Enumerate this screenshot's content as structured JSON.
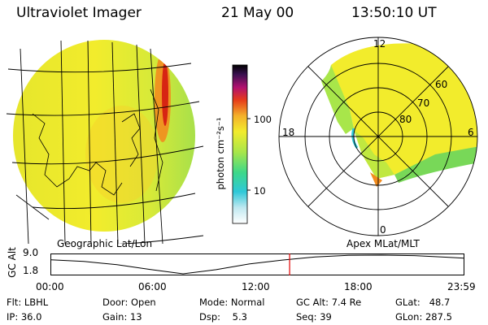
{
  "header": {
    "instrument": "Ultraviolet Imager",
    "date": "21 May 00",
    "time": "13:50:10 UT"
  },
  "colorbar": {
    "unit_label": "photon cm⁻²s⁻¹",
    "ticks": [
      "100",
      "10"
    ]
  },
  "polar_plot": {
    "mlt_labels": {
      "top": "12",
      "left": "18",
      "right": "6",
      "bottom": "0"
    },
    "lat_labels": [
      "60",
      "70",
      "80"
    ]
  },
  "orbit_panel": {
    "left_title": "Geographic Lat/Lon",
    "right_title": "Apex MLat/MLT",
    "y_label": "GC Alt",
    "y_ticks": [
      "9.0",
      "1.8"
    ],
    "x_ticks": [
      "00:00",
      "06:00",
      "12:00",
      "18:00",
      "23:59"
    ],
    "current_time_fraction": 0.578,
    "altitude_curve": {
      "t": [
        0,
        0.08,
        0.16,
        0.24,
        0.32,
        0.4,
        0.48,
        0.56,
        0.64,
        0.72,
        0.8,
        0.88,
        0.96,
        1.0
      ],
      "alt": [
        7.2,
        6.6,
        5.3,
        3.5,
        1.8,
        3.4,
        5.6,
        7.1,
        8.3,
        8.9,
        9.0,
        8.8,
        8.2,
        7.8
      ]
    }
  },
  "status": {
    "flt": "Flt: LBHL",
    "ip": "IP: 36.0",
    "door": "Door: Open",
    "gain": "Gain: 13",
    "mode": "Mode: Normal",
    "dsp": "Dsp:    5.3",
    "gcalt": "GC Alt: 7.4 Re",
    "seq": "Seq: 39",
    "glat": "GLat:   48.7",
    "glon": "GLon: 287.5"
  }
}
